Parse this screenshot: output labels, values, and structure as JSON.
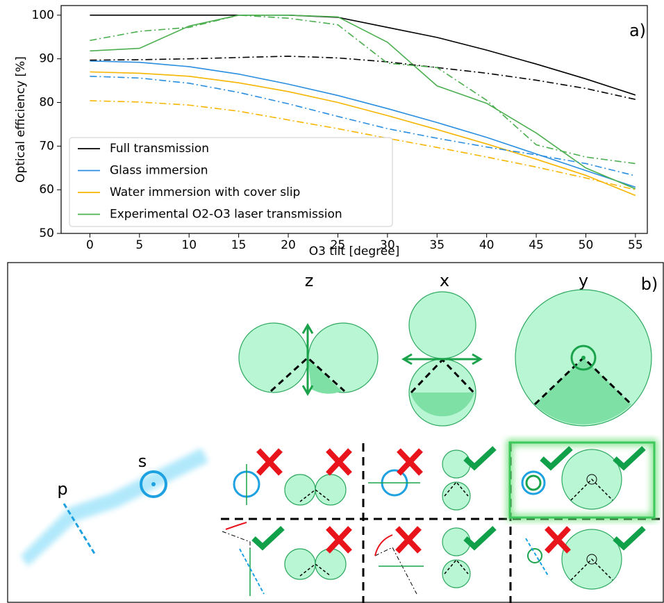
{
  "chart_data": {
    "type": "line",
    "annotation": "a)",
    "x_label": "O3 tilt [degree]",
    "y_label": "Optical efficiency [%]",
    "x": [
      0,
      5,
      10,
      15,
      20,
      25,
      30,
      35,
      40,
      45,
      50,
      55
    ],
    "series": [
      {
        "name": "Full transmission",
        "color": "#000000",
        "linestyle": "solid",
        "values": [
          100,
          100,
          100,
          100,
          100,
          99.5,
          97.2,
          94.9,
          92,
          88.8,
          85.4,
          81.7
        ]
      },
      {
        "name": "Glass immersion",
        "color": "#2a8ee0",
        "linestyle": "solid",
        "values": [
          89.5,
          89.2,
          88.2,
          86.5,
          84.2,
          81.6,
          78.6,
          75.4,
          72,
          68.2,
          64.4,
          60.6
        ]
      },
      {
        "name": "Water immersion with cover slip",
        "color": "#f7b500",
        "linestyle": "solid",
        "values": [
          87,
          86.7,
          86,
          84.5,
          82.5,
          80,
          77,
          73.8,
          70.5,
          67,
          63.3,
          58.7
        ]
      },
      {
        "name": "Experimental O2-O3 laser transmission",
        "color": "#4caf50",
        "linestyle": "solid",
        "values": [
          91.8,
          92.4,
          97.5,
          100,
          100,
          99.6,
          93.8,
          83.8,
          79.8,
          73,
          65,
          60.2
        ]
      },
      {
        "color": "#000000",
        "linestyle": "dashdot",
        "values": [
          89.7,
          89.8,
          90,
          90.3,
          90.6,
          90.2,
          89.3,
          88,
          86.7,
          85.1,
          83.2,
          80.7
        ]
      },
      {
        "color": "#2a8ee0",
        "linestyle": "dashdot",
        "values": [
          86,
          85.6,
          84.4,
          82.3,
          79.7,
          76.8,
          74,
          71.8,
          69.8,
          68,
          66,
          63.2
        ]
      },
      {
        "color": "#f7b500",
        "linestyle": "dashdot",
        "values": [
          80.4,
          80.1,
          79.4,
          78,
          76,
          74,
          71.8,
          69.7,
          67.5,
          65.2,
          62.7,
          60
        ]
      },
      {
        "color": "#4caf50",
        "linestyle": "dashdot",
        "values": [
          94.2,
          96.3,
          97.2,
          100,
          99.3,
          97.8,
          89,
          88,
          80.5,
          70.3,
          67.5,
          66
        ]
      }
    ],
    "xlim": [
      -2.9,
      56.2
    ],
    "ylim": [
      50,
      102.2
    ],
    "xticks": [
      0,
      5,
      10,
      15,
      20,
      25,
      30,
      35,
      40,
      45,
      50,
      55
    ],
    "yticks": [
      50,
      60,
      70,
      80,
      90,
      100
    ],
    "legend": "lower left"
  },
  "panel_b": {
    "label": "b)",
    "columns": [
      "z",
      "x",
      "y"
    ],
    "polarizations": [
      "p",
      "s"
    ]
  }
}
